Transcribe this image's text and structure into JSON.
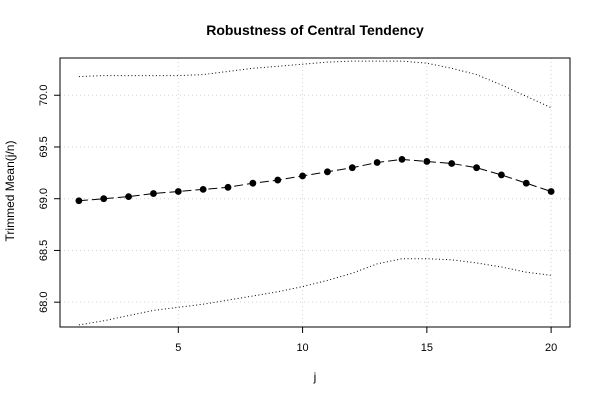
{
  "chart_data": {
    "type": "line",
    "title": "Robustness of Central Tendency",
    "xlabel": "j",
    "ylabel": "Trimmed Mean(j/n)",
    "xlim": [
      0.24,
      20.76
    ],
    "ylim": [
      67.76,
      70.36
    ],
    "x_ticks": [
      5,
      10,
      15,
      20
    ],
    "y_ticks": [
      68.0,
      68.5,
      69.0,
      69.5,
      70.0
    ],
    "x_tick_labels": [
      "5",
      "10",
      "15",
      "20"
    ],
    "y_tick_labels": [
      "68.0",
      "68.5",
      "69.0",
      "69.5",
      "70.0"
    ],
    "grid": true,
    "series": [
      {
        "role": "mean",
        "style": "dashed-with-points",
        "color": "#000000",
        "x": [
          1,
          2,
          3,
          4,
          5,
          6,
          7,
          8,
          9,
          10,
          11,
          12,
          13,
          14,
          15,
          16,
          17,
          18,
          19,
          20
        ],
        "values": [
          68.98,
          69.0,
          69.02,
          69.05,
          69.07,
          69.09,
          69.11,
          69.15,
          69.18,
          69.22,
          69.26,
          69.3,
          69.35,
          69.38,
          69.36,
          69.34,
          69.3,
          69.23,
          69.15,
          69.07
        ]
      },
      {
        "role": "upper",
        "style": "dotted",
        "color": "#000000",
        "x": [
          1,
          2,
          3,
          4,
          5,
          6,
          7,
          8,
          9,
          10,
          11,
          12,
          13,
          14,
          15,
          16,
          17,
          18,
          19,
          20
        ],
        "values": [
          70.18,
          70.19,
          70.19,
          70.19,
          70.19,
          70.2,
          70.23,
          70.26,
          70.28,
          70.3,
          70.32,
          70.33,
          70.33,
          70.33,
          70.31,
          70.26,
          70.2,
          70.1,
          69.99,
          69.88
        ]
      },
      {
        "role": "lower",
        "style": "dotted",
        "color": "#000000",
        "x": [
          1,
          2,
          3,
          4,
          5,
          6,
          7,
          8,
          9,
          10,
          11,
          12,
          13,
          14,
          15,
          16,
          17,
          18,
          19,
          20
        ],
        "values": [
          67.78,
          67.82,
          67.87,
          67.92,
          67.95,
          67.98,
          68.02,
          68.06,
          68.1,
          68.15,
          68.21,
          68.28,
          68.37,
          68.42,
          68.42,
          68.41,
          68.38,
          68.34,
          68.29,
          68.26
        ]
      }
    ]
  }
}
